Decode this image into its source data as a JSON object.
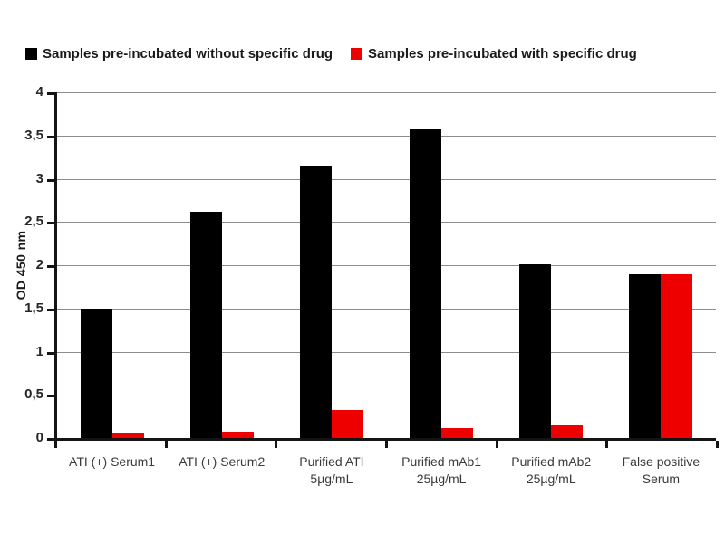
{
  "colors": {
    "background": "#ffffff",
    "axis": "#141414",
    "gridline": "#8c8c8c",
    "tick_label": "#262626",
    "category_label": "#3a3a3a",
    "series_without_drug": "#000000",
    "series_with_drug": "#ee0000"
  },
  "chart_data": {
    "type": "bar",
    "title": "",
    "xlabel": "",
    "ylabel": "OD 450 nm",
    "ylim": [
      0,
      4
    ],
    "ytick_step": 0.5,
    "decimal_separator": ",",
    "grid": true,
    "legend_position": "top",
    "categories": [
      "ATI (+) Serum1",
      "ATI (+) Serum2",
      "Purified ATI\n5µg/mL",
      "Purified mAb1\n25µg/mL",
      "Purified mAb2\n25µg/mL",
      "False positive\nSerum"
    ],
    "series": [
      {
        "key": "without-drug",
        "name": "Samples pre-incubated without specific drug",
        "color": "#000000",
        "values": [
          1.51,
          2.63,
          3.16,
          3.58,
          2.02,
          1.91
        ]
      },
      {
        "key": "with-drug",
        "name": "Samples pre-incubated with specific drug",
        "color": "#ee0000",
        "values": [
          0.06,
          0.08,
          0.34,
          0.13,
          0.16,
          1.91
        ]
      }
    ],
    "yticks": [
      {
        "label": "0",
        "value": 0
      },
      {
        "label": "0,5",
        "value": 0.5
      },
      {
        "label": "1",
        "value": 1
      },
      {
        "label": "1,5",
        "value": 1.5
      },
      {
        "label": "2",
        "value": 2
      },
      {
        "label": "2,5",
        "value": 2.5
      },
      {
        "label": "3",
        "value": 3
      },
      {
        "label": "3,5",
        "value": 3.5
      },
      {
        "label": "4",
        "value": 4
      }
    ]
  }
}
